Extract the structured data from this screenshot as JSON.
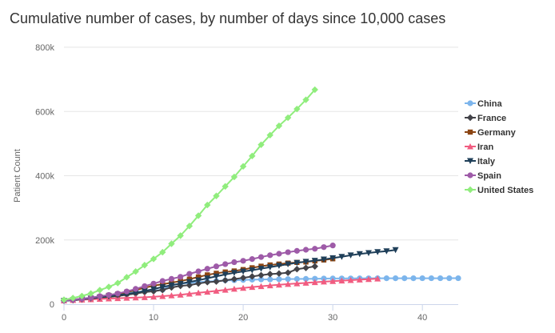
{
  "chart_data": {
    "type": "line",
    "title": "Cumulative number of cases, by number of days since 10,000 cases",
    "xlabel": "",
    "ylabel": "Patient Count",
    "xlim": [
      0,
      44
    ],
    "ylim": [
      0,
      800000
    ],
    "xticks": [
      0,
      10,
      20,
      30,
      40
    ],
    "yticks": [
      0,
      200000,
      400000,
      600000,
      800000
    ],
    "ytick_labels": [
      "0",
      "200k",
      "400k",
      "600k",
      "800k"
    ],
    "grid": "horizontal",
    "legend_position": "right",
    "series": [
      {
        "name": "China",
        "color": "#7cb5ec",
        "marker": "circle",
        "x": [
          0,
          1,
          2,
          3,
          4,
          5,
          6,
          7,
          8,
          9,
          10,
          11,
          12,
          13,
          14,
          15,
          16,
          17,
          18,
          19,
          20,
          21,
          22,
          23,
          24,
          25,
          26,
          27,
          28,
          29,
          30,
          31,
          32,
          33,
          34,
          35,
          36,
          37,
          38,
          39,
          40,
          41,
          42,
          43,
          44
        ],
        "values": [
          11791,
          14380,
          17205,
          20438,
          24324,
          28018,
          31161,
          34546,
          37198,
          40171,
          42638,
          44653,
          59804,
          63851,
          66492,
          68500,
          70548,
          72436,
          74185,
          74576,
          75465,
          76288,
          76936,
          77150,
          77658,
          78064,
          78497,
          78824,
          79251,
          79824,
          80026,
          80151,
          80270,
          80409,
          80552,
          80651,
          80695,
          80735,
          80754,
          80778,
          80793,
          80813,
          80824,
          80844,
          80860
        ]
      },
      {
        "name": "France",
        "color": "#434348",
        "marker": "diamond",
        "x": [
          0,
          1,
          2,
          3,
          4,
          5,
          6,
          7,
          8,
          9,
          10,
          11,
          12,
          13,
          14,
          15,
          16,
          17,
          18,
          19,
          20,
          21,
          22,
          23,
          24,
          25,
          26,
          27,
          28
        ],
        "values": [
          10995,
          12612,
          14459,
          16018,
          19856,
          22304,
          25233,
          29155,
          32964,
          37575,
          40174,
          44550,
          52128,
          56989,
          59105,
          64338,
          68605,
          70478,
          74390,
          78167,
          82048,
          86334,
          90276,
          93790,
          95403,
          98010,
          109069,
          112950,
          117749
        ]
      },
      {
        "name": "Germany",
        "color": "#8b4513",
        "marker": "square",
        "x": [
          0,
          1,
          2,
          3,
          4,
          5,
          6,
          7,
          8,
          9,
          10,
          11,
          12,
          13,
          14,
          15,
          16,
          17,
          18,
          19,
          20,
          21,
          22,
          23,
          24,
          25,
          26,
          27,
          28,
          29,
          30
        ],
        "values": [
          10999,
          13957,
          16662,
          18610,
          22672,
          27436,
          31554,
          37323,
          43938,
          50871,
          57695,
          62095,
          66885,
          71808,
          77872,
          84794,
          91159,
          96092,
          100123,
          103374,
          107663,
          113296,
          118181,
          122171,
          124908,
          127854,
          130072,
          131359,
          134753,
          137698,
          141397
        ]
      },
      {
        "name": "Iran",
        "color": "#f15c80",
        "marker": "triangle",
        "x": [
          0,
          1,
          2,
          3,
          4,
          5,
          6,
          7,
          8,
          9,
          10,
          11,
          12,
          13,
          14,
          15,
          16,
          17,
          18,
          19,
          20,
          21,
          22,
          23,
          24,
          25,
          26,
          27,
          28,
          29,
          30,
          31,
          32,
          33,
          34,
          35
        ],
        "values": [
          11364,
          12729,
          13938,
          14991,
          16169,
          17361,
          18407,
          19644,
          20610,
          21638,
          23049,
          24811,
          27017,
          29406,
          32332,
          35408,
          38309,
          41495,
          44605,
          47593,
          50468,
          53183,
          55743,
          58226,
          60500,
          62589,
          64586,
          66220,
          68192,
          70029,
          71686,
          73303,
          74877,
          76389,
          77995,
          79494
        ]
      },
      {
        "name": "Italy",
        "color": "#1f3f59",
        "marker": "triangle-down",
        "x": [
          0,
          1,
          2,
          3,
          4,
          5,
          6,
          7,
          8,
          9,
          10,
          11,
          12,
          13,
          14,
          15,
          16,
          17,
          18,
          19,
          20,
          21,
          22,
          23,
          24,
          25,
          26,
          27,
          28,
          29,
          30,
          31,
          32,
          33,
          34,
          35,
          36,
          37
        ],
        "values": [
          10149,
          12462,
          15113,
          17660,
          21157,
          24747,
          27980,
          31506,
          35713,
          41035,
          47021,
          53578,
          59138,
          63927,
          69176,
          74386,
          80589,
          86498,
          92472,
          97689,
          101739,
          105792,
          110574,
          115242,
          119827,
          124632,
          128948,
          132547,
          135586,
          139422,
          143626,
          147577,
          152271,
          156363,
          159516,
          162488,
          165155,
          168941
        ]
      },
      {
        "name": "Spain",
        "color": "#9e5ba8",
        "marker": "circle",
        "x": [
          0,
          1,
          2,
          3,
          4,
          5,
          6,
          7,
          8,
          9,
          10,
          11,
          12,
          13,
          14,
          15,
          16,
          17,
          18,
          19,
          20,
          21,
          22,
          23,
          24,
          25,
          26,
          27,
          28,
          29,
          30
        ],
        "values": [
          11178,
          13716,
          17147,
          19980,
          24926,
          28572,
          33089,
          39673,
          47610,
          56188,
          64059,
          72248,
          78797,
          85195,
          94417,
          102136,
          110238,
          117710,
          124736,
          130759,
          135032,
          140510,
          146690,
          152446,
          157022,
          161852,
          166019,
          169496,
          172541,
          177633,
          182816
        ]
      },
      {
        "name": "United States",
        "color": "#90ed7d",
        "marker": "diamond",
        "x": [
          0,
          1,
          2,
          3,
          4,
          5,
          6,
          7,
          8,
          9,
          10,
          11,
          12,
          13,
          14,
          15,
          16,
          17,
          18,
          19,
          20,
          21,
          22,
          23,
          24,
          25,
          26,
          27,
          28
        ],
        "values": [
          13677,
          19100,
          25489,
          33276,
          43847,
          53740,
          65778,
          83836,
          101657,
          121478,
          140886,
          161807,
          188172,
          213372,
          243453,
          275586,
          308850,
          337072,
          366667,
          396223,
          429052,
          461437,
          496535,
          526396,
          555313,
          580619,
          607670,
          636350,
          667801
        ]
      }
    ]
  }
}
